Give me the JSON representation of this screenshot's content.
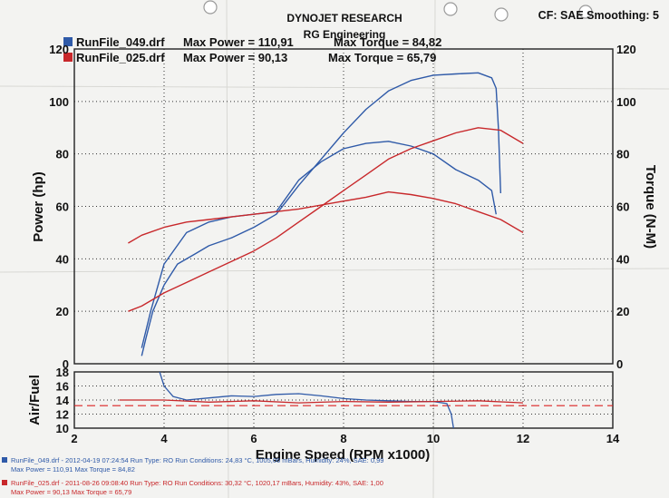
{
  "header": {
    "title": "DYNOJET RESEARCH",
    "subtitle": "RG Engineering",
    "settings": "CF: SAE  Smoothing: 5"
  },
  "legend": [
    {
      "file": "RunFile_049.drf",
      "max_power": "Max Power = 110,91",
      "max_torque": "Max Torque = 84,82",
      "color": "#2f5aa8"
    },
    {
      "file": "RunFile_025.drf",
      "max_power": "Max Power = 90,13",
      "max_torque": "Max Torque = 65,79",
      "color": "#c8282b"
    }
  ],
  "footer": [
    {
      "line1": "RunFile_049.drf - 2012-04-19 07:24:54  Run Type: RO  Run Conditions: 24,83 °C, 1005,06 mBars,  Humidity:  24%, SAE: 0,99",
      "line2": "Max Power = 110,91  Max Torque = 84,82",
      "color": "#2f5aa8"
    },
    {
      "line1": "RunFile_025.drf - 2011-08-26 09:08:40  Run Type: RO  Run Conditions: 30,32 °C, 1020,17 mBars,  Humidity:  43%, SAE: 1,00",
      "line2": "Max Power = 90,13  Max Torque = 65,79",
      "color": "#c8282b"
    }
  ],
  "chart_data": [
    {
      "type": "line",
      "xlabel": "Engine Speed (RPM x1000)",
      "ylabel": "Power (hp)",
      "y2label": "Torque (N-M)",
      "xlim": [
        2,
        14
      ],
      "ylim": [
        0,
        120
      ],
      "y2lim": [
        0,
        120
      ],
      "xticks": [
        2,
        4,
        6,
        8,
        10,
        12,
        14
      ],
      "yticks": [
        0,
        20,
        40,
        60,
        80,
        100,
        120
      ],
      "y2ticks": [
        0,
        20,
        40,
        60,
        80,
        100,
        120
      ],
      "grid": true,
      "series": [
        {
          "name": "RunFile_049.drf Power",
          "color": "#2f5aa8",
          "points": [
            [
              3.5,
              3
            ],
            [
              3.6,
              10
            ],
            [
              3.75,
              20
            ],
            [
              4.0,
              30
            ],
            [
              4.3,
              38
            ],
            [
              4.7,
              42
            ],
            [
              5.0,
              45
            ],
            [
              5.5,
              48
            ],
            [
              6.0,
              52
            ],
            [
              6.5,
              57
            ],
            [
              7.0,
              68
            ],
            [
              7.5,
              78
            ],
            [
              8.0,
              88
            ],
            [
              8.5,
              97
            ],
            [
              9.0,
              104
            ],
            [
              9.5,
              108
            ],
            [
              10.0,
              110
            ],
            [
              10.5,
              110.5
            ],
            [
              11.0,
              110.9
            ],
            [
              11.3,
              109
            ],
            [
              11.4,
              105
            ],
            [
              11.45,
              90
            ],
            [
              11.5,
              65
            ]
          ]
        },
        {
          "name": "RunFile_049.drf Torque",
          "color": "#2f5aa8",
          "points": [
            [
              3.5,
              6
            ],
            [
              3.7,
              20
            ],
            [
              4.0,
              38
            ],
            [
              4.5,
              50
            ],
            [
              5.0,
              54
            ],
            [
              5.5,
              56
            ],
            [
              6.0,
              57
            ],
            [
              6.5,
              58
            ],
            [
              7.0,
              70
            ],
            [
              7.5,
              77
            ],
            [
              8.0,
              82
            ],
            [
              8.5,
              84
            ],
            [
              9.0,
              84.8
            ],
            [
              9.5,
              83
            ],
            [
              10.0,
              80
            ],
            [
              10.5,
              74
            ],
            [
              11.0,
              70
            ],
            [
              11.3,
              66
            ],
            [
              11.4,
              57
            ]
          ]
        },
        {
          "name": "RunFile_025.drf Power",
          "color": "#c8282b",
          "points": [
            [
              3.2,
              20
            ],
            [
              3.5,
              22
            ],
            [
              4.0,
              27
            ],
            [
              4.5,
              31
            ],
            [
              5.0,
              35
            ],
            [
              5.5,
              39
            ],
            [
              6.0,
              43
            ],
            [
              6.5,
              48
            ],
            [
              7.0,
              54
            ],
            [
              7.5,
              60
            ],
            [
              8.0,
              66
            ],
            [
              8.5,
              72
            ],
            [
              9.0,
              78
            ],
            [
              9.5,
              82
            ],
            [
              10.0,
              85
            ],
            [
              10.5,
              88
            ],
            [
              11.0,
              90
            ],
            [
              11.5,
              89
            ],
            [
              12.0,
              84
            ]
          ]
        },
        {
          "name": "RunFile_025.drf Torque",
          "color": "#c8282b",
          "points": [
            [
              3.2,
              46
            ],
            [
              3.5,
              49
            ],
            [
              4.0,
              52
            ],
            [
              4.5,
              54
            ],
            [
              5.0,
              55
            ],
            [
              5.5,
              56
            ],
            [
              6.0,
              57
            ],
            [
              6.5,
              58
            ],
            [
              7.0,
              59
            ],
            [
              7.5,
              60.5
            ],
            [
              8.0,
              62
            ],
            [
              8.5,
              63.5
            ],
            [
              9.0,
              65.5
            ],
            [
              9.5,
              64.5
            ],
            [
              10.0,
              63
            ],
            [
              10.5,
              61
            ],
            [
              11.0,
              58
            ],
            [
              11.5,
              55
            ],
            [
              12.0,
              50
            ]
          ]
        }
      ]
    },
    {
      "type": "line",
      "ylabel": "Air/Fuel",
      "xlim": [
        2,
        14
      ],
      "ylim": [
        10,
        18
      ],
      "yticks": [
        10,
        12,
        14,
        16,
        18
      ],
      "xticks": [
        2,
        4,
        6,
        8,
        10,
        12,
        14
      ],
      "grid": true,
      "reference_line": 13.2,
      "series": [
        {
          "name": "RunFile_049.drf Air/Fuel",
          "color": "#2f5aa8",
          "points": [
            [
              3.9,
              18
            ],
            [
              4.0,
              16
            ],
            [
              4.2,
              14.5
            ],
            [
              4.5,
              14
            ],
            [
              5.0,
              14.3
            ],
            [
              5.5,
              14.6
            ],
            [
              6.0,
              14.5
            ],
            [
              6.5,
              14.8
            ],
            [
              7.0,
              14.9
            ],
            [
              7.5,
              14.6
            ],
            [
              8.0,
              14.2
            ],
            [
              8.5,
              14.0
            ],
            [
              9.0,
              13.9
            ],
            [
              9.5,
              13.8
            ],
            [
              10.0,
              13.8
            ],
            [
              10.3,
              13.5
            ],
            [
              10.4,
              12
            ],
            [
              10.45,
              10
            ]
          ]
        },
        {
          "name": "RunFile_025.drf Air/Fuel",
          "color": "#c8282b",
          "points": [
            [
              3.0,
              14.0
            ],
            [
              4.0,
              14.0
            ],
            [
              5.0,
              13.7
            ],
            [
              6.0,
              13.9
            ],
            [
              7.0,
              13.6
            ],
            [
              8.0,
              13.8
            ],
            [
              9.0,
              13.7
            ],
            [
              10.0,
              13.8
            ],
            [
              11.0,
              13.9
            ],
            [
              12.0,
              13.6
            ]
          ]
        }
      ]
    }
  ]
}
